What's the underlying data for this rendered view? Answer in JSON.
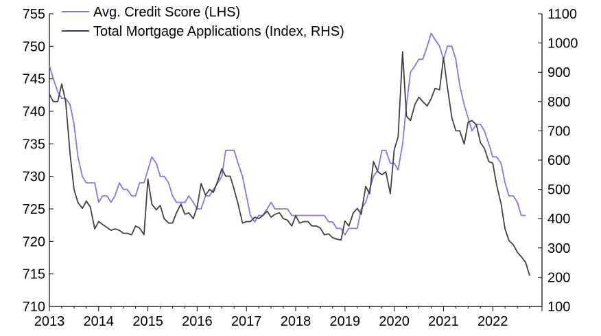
{
  "chart_data": {
    "type": "line",
    "title": "",
    "xlabel": "",
    "ylabel": "",
    "x_ticks": [
      "2013",
      "2014",
      "2015",
      "2016",
      "2017",
      "2018",
      "2019",
      "2020",
      "2021",
      "2022"
    ],
    "xlim": [
      2013,
      2023
    ],
    "y_left": {
      "ylim": [
        710,
        755
      ],
      "ticks": [
        "710",
        "715",
        "720",
        "725",
        "730",
        "735",
        "740",
        "745",
        "750",
        "755"
      ]
    },
    "y_right": {
      "ylim": [
        100,
        1100
      ],
      "ticks": [
        "100",
        "200",
        "300",
        "400",
        "500",
        "600",
        "700",
        "800",
        "900",
        "1000",
        "1100"
      ]
    },
    "legend_position": "top-left",
    "series": [
      {
        "name": "Avg. Credit Score (LHS)",
        "axis": "left",
        "color": "#7b7be6",
        "points": [
          [
            2013.0,
            747
          ],
          [
            2013.08,
            745
          ],
          [
            2013.17,
            743
          ],
          [
            2013.25,
            742
          ],
          [
            2013.33,
            742
          ],
          [
            2013.42,
            741
          ],
          [
            2013.5,
            738
          ],
          [
            2013.58,
            733
          ],
          [
            2013.67,
            730
          ],
          [
            2013.75,
            729
          ],
          [
            2013.83,
            729
          ],
          [
            2013.92,
            729
          ],
          [
            2014.0,
            726
          ],
          [
            2014.08,
            727
          ],
          [
            2014.17,
            727
          ],
          [
            2014.25,
            726
          ],
          [
            2014.33,
            727
          ],
          [
            2014.42,
            729
          ],
          [
            2014.5,
            728
          ],
          [
            2014.58,
            728
          ],
          [
            2014.67,
            727
          ],
          [
            2014.75,
            727
          ],
          [
            2014.83,
            729
          ],
          [
            2014.92,
            729
          ],
          [
            2015.0,
            731
          ],
          [
            2015.08,
            733
          ],
          [
            2015.17,
            732
          ],
          [
            2015.25,
            730
          ],
          [
            2015.33,
            730
          ],
          [
            2015.42,
            729
          ],
          [
            2015.5,
            727
          ],
          [
            2015.58,
            726
          ],
          [
            2015.67,
            726
          ],
          [
            2015.75,
            726
          ],
          [
            2015.83,
            727
          ],
          [
            2015.92,
            726
          ],
          [
            2016.0,
            725
          ],
          [
            2016.08,
            725
          ],
          [
            2016.17,
            727
          ],
          [
            2016.25,
            727
          ],
          [
            2016.33,
            728
          ],
          [
            2016.42,
            729
          ],
          [
            2016.5,
            730
          ],
          [
            2016.58,
            734
          ],
          [
            2016.67,
            734
          ],
          [
            2016.75,
            734
          ],
          [
            2016.83,
            732
          ],
          [
            2016.92,
            730
          ],
          [
            2017.0,
            727
          ],
          [
            2017.08,
            724
          ],
          [
            2017.17,
            723
          ],
          [
            2017.25,
            724
          ],
          [
            2017.33,
            724
          ],
          [
            2017.42,
            725
          ],
          [
            2017.5,
            726
          ],
          [
            2017.58,
            725
          ],
          [
            2017.67,
            725
          ],
          [
            2017.75,
            725
          ],
          [
            2017.83,
            725
          ],
          [
            2017.92,
            724
          ],
          [
            2018.0,
            724
          ],
          [
            2018.08,
            724
          ],
          [
            2018.17,
            724
          ],
          [
            2018.25,
            724
          ],
          [
            2018.33,
            724
          ],
          [
            2018.42,
            724
          ],
          [
            2018.5,
            724
          ],
          [
            2018.58,
            724
          ],
          [
            2018.67,
            723
          ],
          [
            2018.75,
            723
          ],
          [
            2018.83,
            722
          ],
          [
            2018.92,
            722
          ],
          [
            2019.0,
            721
          ],
          [
            2019.08,
            722
          ],
          [
            2019.17,
            722
          ],
          [
            2019.25,
            722
          ],
          [
            2019.33,
            725
          ],
          [
            2019.42,
            726
          ],
          [
            2019.5,
            728
          ],
          [
            2019.58,
            730
          ],
          [
            2019.67,
            731
          ],
          [
            2019.75,
            734
          ],
          [
            2019.83,
            734
          ],
          [
            2019.92,
            732
          ],
          [
            2020.0,
            732
          ],
          [
            2020.08,
            731
          ],
          [
            2020.17,
            735
          ],
          [
            2020.25,
            741
          ],
          [
            2020.33,
            746
          ],
          [
            2020.42,
            747
          ],
          [
            2020.5,
            748
          ],
          [
            2020.58,
            748
          ],
          [
            2020.67,
            750
          ],
          [
            2020.75,
            752
          ],
          [
            2020.83,
            751
          ],
          [
            2020.92,
            750
          ],
          [
            2021.0,
            748
          ],
          [
            2021.08,
            750
          ],
          [
            2021.17,
            750
          ],
          [
            2021.25,
            748
          ],
          [
            2021.33,
            744
          ],
          [
            2021.42,
            741
          ],
          [
            2021.5,
            739
          ],
          [
            2021.58,
            737
          ],
          [
            2021.67,
            738
          ],
          [
            2021.75,
            738
          ],
          [
            2021.83,
            737
          ],
          [
            2021.92,
            735
          ],
          [
            2022.0,
            733
          ],
          [
            2022.08,
            733
          ],
          [
            2022.17,
            732
          ],
          [
            2022.25,
            729
          ],
          [
            2022.33,
            727
          ],
          [
            2022.42,
            727
          ],
          [
            2022.5,
            726
          ],
          [
            2022.58,
            724
          ],
          [
            2022.67,
            724
          ]
        ]
      },
      {
        "name": "Total Mortgage Applications (Index, RHS)",
        "axis": "right",
        "color": "#404040",
        "points": [
          [
            2013.0,
            825
          ],
          [
            2013.08,
            800
          ],
          [
            2013.17,
            800
          ],
          [
            2013.25,
            860
          ],
          [
            2013.33,
            800
          ],
          [
            2013.42,
            620
          ],
          [
            2013.5,
            500
          ],
          [
            2013.58,
            455
          ],
          [
            2013.67,
            435
          ],
          [
            2013.75,
            460
          ],
          [
            2013.83,
            440
          ],
          [
            2013.92,
            365
          ],
          [
            2014.0,
            390
          ],
          [
            2014.08,
            380
          ],
          [
            2014.17,
            370
          ],
          [
            2014.25,
            360
          ],
          [
            2014.33,
            365
          ],
          [
            2014.42,
            360
          ],
          [
            2014.5,
            350
          ],
          [
            2014.58,
            350
          ],
          [
            2014.67,
            345
          ],
          [
            2014.75,
            375
          ],
          [
            2014.83,
            368
          ],
          [
            2014.92,
            345
          ],
          [
            2015.0,
            535
          ],
          [
            2015.08,
            450
          ],
          [
            2015.17,
            430
          ],
          [
            2015.25,
            445
          ],
          [
            2015.33,
            400
          ],
          [
            2015.42,
            385
          ],
          [
            2015.5,
            385
          ],
          [
            2015.58,
            420
          ],
          [
            2015.67,
            450
          ],
          [
            2015.75,
            415
          ],
          [
            2015.83,
            420
          ],
          [
            2015.92,
            400
          ],
          [
            2016.0,
            440
          ],
          [
            2016.08,
            520
          ],
          [
            2016.17,
            480
          ],
          [
            2016.25,
            500
          ],
          [
            2016.33,
            490
          ],
          [
            2016.42,
            530
          ],
          [
            2016.5,
            570
          ],
          [
            2016.58,
            545
          ],
          [
            2016.67,
            545
          ],
          [
            2016.75,
            500
          ],
          [
            2016.83,
            450
          ],
          [
            2016.92,
            385
          ],
          [
            2017.0,
            390
          ],
          [
            2017.08,
            390
          ],
          [
            2017.17,
            405
          ],
          [
            2017.25,
            400
          ],
          [
            2017.33,
            410
          ],
          [
            2017.42,
            425
          ],
          [
            2017.5,
            405
          ],
          [
            2017.58,
            415
          ],
          [
            2017.67,
            420
          ],
          [
            2017.75,
            400
          ],
          [
            2017.83,
            395
          ],
          [
            2017.92,
            375
          ],
          [
            2018.0,
            410
          ],
          [
            2018.08,
            385
          ],
          [
            2018.17,
            390
          ],
          [
            2018.25,
            390
          ],
          [
            2018.33,
            375
          ],
          [
            2018.42,
            375
          ],
          [
            2018.5,
            368
          ],
          [
            2018.58,
            345
          ],
          [
            2018.67,
            348
          ],
          [
            2018.75,
            335
          ],
          [
            2018.83,
            330
          ],
          [
            2018.92,
            327
          ],
          [
            2019.0,
            392
          ],
          [
            2019.08,
            375
          ],
          [
            2019.17,
            420
          ],
          [
            2019.25,
            435
          ],
          [
            2019.33,
            415
          ],
          [
            2019.42,
            510
          ],
          [
            2019.5,
            485
          ],
          [
            2019.58,
            595
          ],
          [
            2019.67,
            560
          ],
          [
            2019.75,
            550
          ],
          [
            2019.83,
            560
          ],
          [
            2019.92,
            485
          ],
          [
            2020.0,
            635
          ],
          [
            2020.08,
            680
          ],
          [
            2020.17,
            970
          ],
          [
            2020.25,
            750
          ],
          [
            2020.33,
            735
          ],
          [
            2020.42,
            790
          ],
          [
            2020.5,
            815
          ],
          [
            2020.58,
            800
          ],
          [
            2020.67,
            785
          ],
          [
            2020.75,
            810
          ],
          [
            2020.83,
            845
          ],
          [
            2020.92,
            840
          ],
          [
            2021.0,
            950
          ],
          [
            2021.08,
            850
          ],
          [
            2021.17,
            745
          ],
          [
            2021.25,
            700
          ],
          [
            2021.33,
            700
          ],
          [
            2021.42,
            655
          ],
          [
            2021.5,
            730
          ],
          [
            2021.58,
            735
          ],
          [
            2021.67,
            720
          ],
          [
            2021.75,
            660
          ],
          [
            2021.83,
            640
          ],
          [
            2021.92,
            595
          ],
          [
            2022.0,
            590
          ],
          [
            2022.08,
            515
          ],
          [
            2022.17,
            450
          ],
          [
            2022.25,
            365
          ],
          [
            2022.33,
            325
          ],
          [
            2022.42,
            310
          ],
          [
            2022.5,
            285
          ],
          [
            2022.58,
            270
          ],
          [
            2022.67,
            250
          ],
          [
            2022.75,
            205
          ]
        ]
      }
    ]
  }
}
